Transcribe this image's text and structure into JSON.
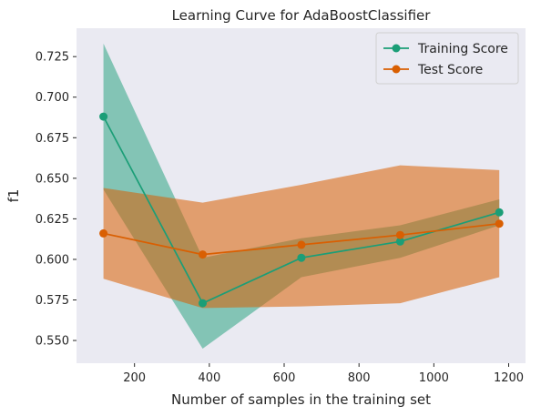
{
  "chart_data": {
    "type": "line",
    "title": "Learning Curve for AdaBoostClassifier",
    "xlabel": "Number of samples in the training set",
    "ylabel": "f1",
    "x": [
      117,
      382,
      646,
      910,
      1175
    ],
    "xlim": [
      45,
      1245
    ],
    "ylim": [
      0.536,
      0.7425
    ],
    "xticks": [
      200,
      400,
      600,
      800,
      1000,
      1200
    ],
    "xtick_labels": [
      "200",
      "400",
      "600",
      "800",
      "1000",
      "1200"
    ],
    "yticks": [
      0.55,
      0.575,
      0.6,
      0.625,
      0.65,
      0.675,
      0.7,
      0.725
    ],
    "ytick_labels": [
      "0.550",
      "0.575",
      "0.600",
      "0.625",
      "0.650",
      "0.675",
      "0.700",
      "0.725"
    ],
    "grid": false,
    "legend_position": "top-right",
    "background": "#eaeaf2",
    "series": [
      {
        "name": "Training Score",
        "color": "#1b9e77",
        "band_color": "#1b9e77",
        "values": [
          0.688,
          0.573,
          0.601,
          0.611,
          0.629
        ],
        "upper": [
          0.733,
          0.601,
          0.613,
          0.621,
          0.637
        ],
        "lower": [
          0.643,
          0.545,
          0.589,
          0.601,
          0.621
        ]
      },
      {
        "name": "Test Score",
        "color": "#d95f02",
        "band_color": "#d95f02",
        "values": [
          0.616,
          0.603,
          0.609,
          0.615,
          0.622
        ],
        "upper": [
          0.644,
          0.635,
          0.646,
          0.658,
          0.655
        ],
        "lower": [
          0.588,
          0.57,
          0.571,
          0.573,
          0.589
        ]
      }
    ]
  }
}
